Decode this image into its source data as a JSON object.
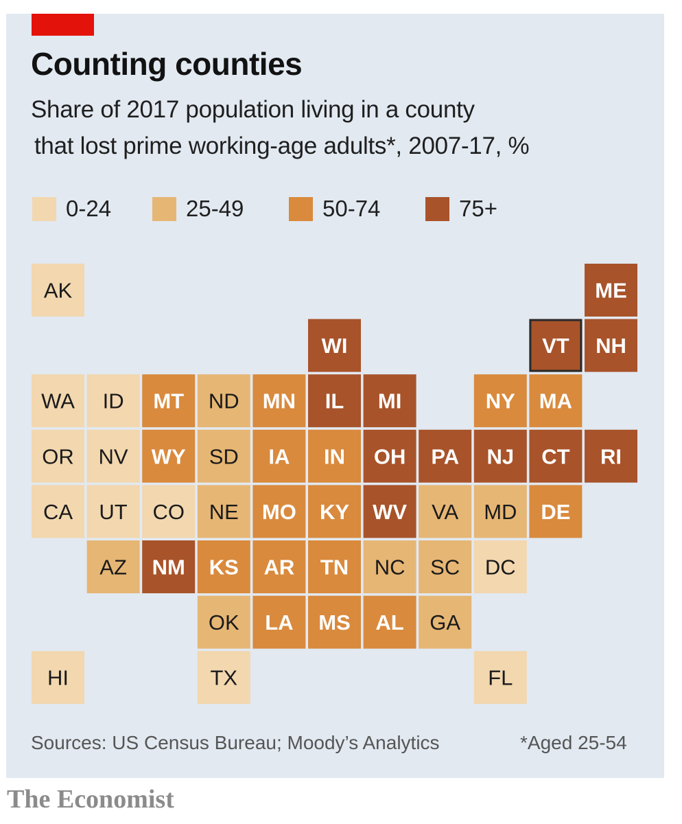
{
  "header": {
    "title": "Counting counties",
    "subtitle_line1": "Share of 2017 population living in a county",
    "subtitle_line2": "that lost prime working-age adults*, 2007-17, %"
  },
  "colors": {
    "background": "#e2e9f1",
    "accent": "#e3120b",
    "text": "#121212",
    "highlight_border": "#2a2a2a"
  },
  "legend": [
    {
      "label": "0-24",
      "bin": 0,
      "color": "#f2d7af"
    },
    {
      "label": "25-49",
      "bin": 1,
      "color": "#e6b674"
    },
    {
      "label": "50-74",
      "bin": 2,
      "color": "#d98a3d"
    },
    {
      "label": "75+",
      "bin": 3,
      "color": "#a8532a"
    }
  ],
  "chart_data": {
    "type": "tile-grid-map",
    "title": "Counting counties",
    "subtitle": "Share of 2017 population living in a county that lost prime working-age adults*, 2007-17, %",
    "bins": [
      "0-24",
      "25-49",
      "50-74",
      "75+"
    ],
    "highlighted": "VT",
    "states": [
      {
        "abbr": "AK",
        "row": 0,
        "col": 0,
        "bin": 0
      },
      {
        "abbr": "ME",
        "row": 0,
        "col": 10,
        "bin": 3
      },
      {
        "abbr": "WI",
        "row": 1,
        "col": 5,
        "bin": 3
      },
      {
        "abbr": "VT",
        "row": 1,
        "col": 9,
        "bin": 3
      },
      {
        "abbr": "NH",
        "row": 1,
        "col": 10,
        "bin": 3
      },
      {
        "abbr": "WA",
        "row": 2,
        "col": 0,
        "bin": 0
      },
      {
        "abbr": "ID",
        "row": 2,
        "col": 1,
        "bin": 0
      },
      {
        "abbr": "MT",
        "row": 2,
        "col": 2,
        "bin": 2
      },
      {
        "abbr": "ND",
        "row": 2,
        "col": 3,
        "bin": 1
      },
      {
        "abbr": "MN",
        "row": 2,
        "col": 4,
        "bin": 2
      },
      {
        "abbr": "IL",
        "row": 2,
        "col": 5,
        "bin": 3
      },
      {
        "abbr": "MI",
        "row": 2,
        "col": 6,
        "bin": 3
      },
      {
        "abbr": "NY",
        "row": 2,
        "col": 8,
        "bin": 2
      },
      {
        "abbr": "MA",
        "row": 2,
        "col": 9,
        "bin": 2
      },
      {
        "abbr": "OR",
        "row": 3,
        "col": 0,
        "bin": 0
      },
      {
        "abbr": "NV",
        "row": 3,
        "col": 1,
        "bin": 0
      },
      {
        "abbr": "WY",
        "row": 3,
        "col": 2,
        "bin": 2
      },
      {
        "abbr": "SD",
        "row": 3,
        "col": 3,
        "bin": 1
      },
      {
        "abbr": "IA",
        "row": 3,
        "col": 4,
        "bin": 2
      },
      {
        "abbr": "IN",
        "row": 3,
        "col": 5,
        "bin": 2
      },
      {
        "abbr": "OH",
        "row": 3,
        "col": 6,
        "bin": 3
      },
      {
        "abbr": "PA",
        "row": 3,
        "col": 7,
        "bin": 3
      },
      {
        "abbr": "NJ",
        "row": 3,
        "col": 8,
        "bin": 3
      },
      {
        "abbr": "CT",
        "row": 3,
        "col": 9,
        "bin": 3
      },
      {
        "abbr": "RI",
        "row": 3,
        "col": 10,
        "bin": 3
      },
      {
        "abbr": "CA",
        "row": 4,
        "col": 0,
        "bin": 0
      },
      {
        "abbr": "UT",
        "row": 4,
        "col": 1,
        "bin": 0
      },
      {
        "abbr": "CO",
        "row": 4,
        "col": 2,
        "bin": 0
      },
      {
        "abbr": "NE",
        "row": 4,
        "col": 3,
        "bin": 1
      },
      {
        "abbr": "MO",
        "row": 4,
        "col": 4,
        "bin": 2
      },
      {
        "abbr": "KY",
        "row": 4,
        "col": 5,
        "bin": 2
      },
      {
        "abbr": "WV",
        "row": 4,
        "col": 6,
        "bin": 3
      },
      {
        "abbr": "VA",
        "row": 4,
        "col": 7,
        "bin": 1
      },
      {
        "abbr": "MD",
        "row": 4,
        "col": 8,
        "bin": 1
      },
      {
        "abbr": "DE",
        "row": 4,
        "col": 9,
        "bin": 2
      },
      {
        "abbr": "AZ",
        "row": 5,
        "col": 1,
        "bin": 1
      },
      {
        "abbr": "NM",
        "row": 5,
        "col": 2,
        "bin": 3
      },
      {
        "abbr": "KS",
        "row": 5,
        "col": 3,
        "bin": 2
      },
      {
        "abbr": "AR",
        "row": 5,
        "col": 4,
        "bin": 2
      },
      {
        "abbr": "TN",
        "row": 5,
        "col": 5,
        "bin": 2
      },
      {
        "abbr": "NC",
        "row": 5,
        "col": 6,
        "bin": 1
      },
      {
        "abbr": "SC",
        "row": 5,
        "col": 7,
        "bin": 1
      },
      {
        "abbr": "DC",
        "row": 5,
        "col": 8,
        "bin": 0
      },
      {
        "abbr": "OK",
        "row": 6,
        "col": 3,
        "bin": 1
      },
      {
        "abbr": "LA",
        "row": 6,
        "col": 4,
        "bin": 2
      },
      {
        "abbr": "MS",
        "row": 6,
        "col": 5,
        "bin": 2
      },
      {
        "abbr": "AL",
        "row": 6,
        "col": 6,
        "bin": 2
      },
      {
        "abbr": "GA",
        "row": 6,
        "col": 7,
        "bin": 1
      },
      {
        "abbr": "HI",
        "row": 7,
        "col": 0,
        "bin": 0
      },
      {
        "abbr": "TX",
        "row": 7,
        "col": 3,
        "bin": 0
      },
      {
        "abbr": "FL",
        "row": 7,
        "col": 8,
        "bin": 0
      }
    ]
  },
  "footer": {
    "sources": "Sources: US Census Bureau; Moody’s Analytics",
    "footnote": "*Aged 25-54",
    "brand": "The Economist"
  }
}
